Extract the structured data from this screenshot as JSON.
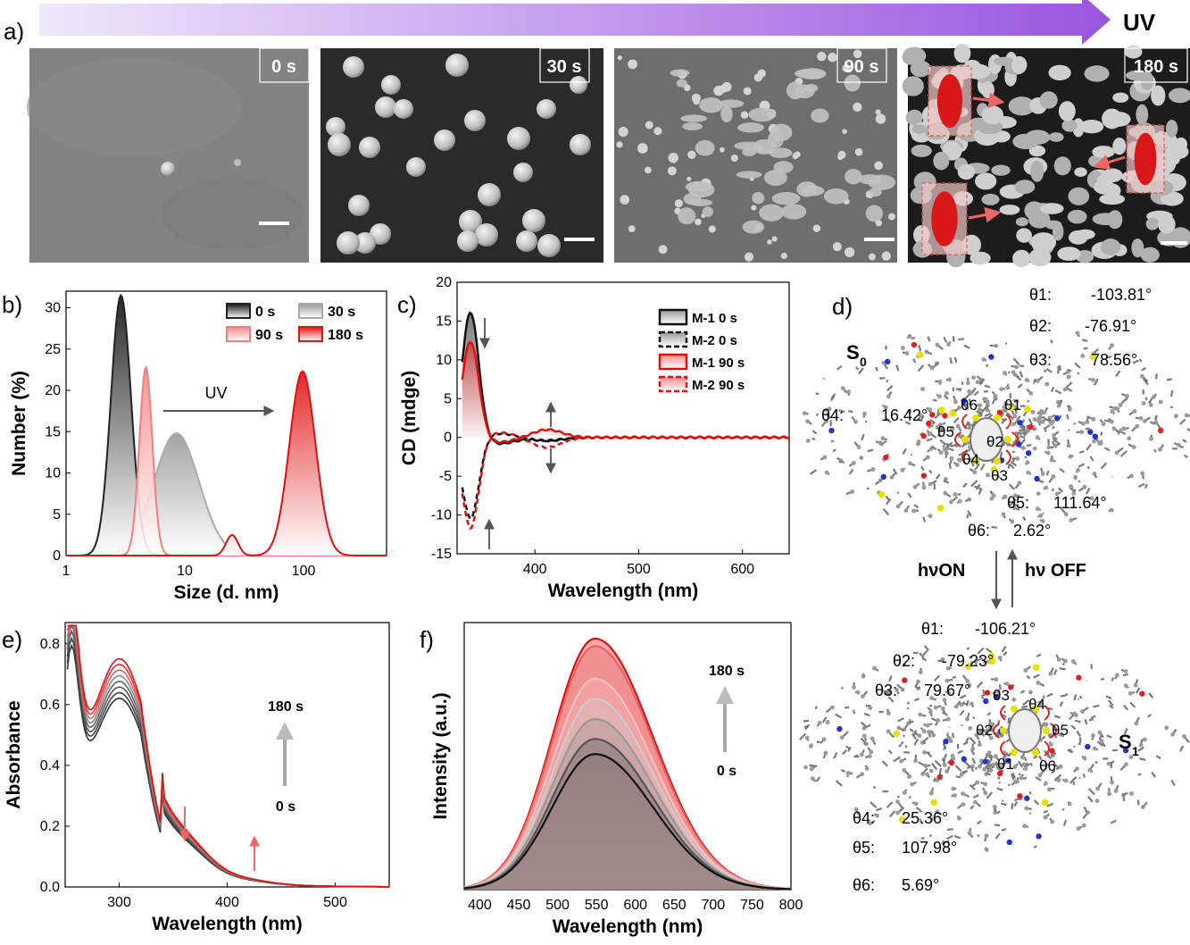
{
  "panel_labels": {
    "a": "a)",
    "b": "b)",
    "c": "c)",
    "d": "d)",
    "e": "e)",
    "f": "f)"
  },
  "uv_label": "UV",
  "sem": {
    "times": [
      "0 s",
      "30 s",
      "90 s",
      "180 s"
    ]
  },
  "molecules": {
    "s0_label": "S",
    "s0_sub": "0",
    "s1_label": "S",
    "s1_sub": "1",
    "s0_angles": [
      {
        "name": "θ1:",
        "value": "-103.81°"
      },
      {
        "name": "θ2:",
        "value": "-76.91°"
      },
      {
        "name": "θ3:",
        "value": "78.56°"
      },
      {
        "name": "θ4:",
        "value": "16.42°"
      },
      {
        "name": "θ5:",
        "value": "111.64°"
      },
      {
        "name": "θ6:",
        "value": "2.62°"
      }
    ],
    "s1_angles": [
      {
        "name": "θ1:",
        "value": "-106.21°"
      },
      {
        "name": "θ2:",
        "value": "-79.23°"
      },
      {
        "name": "θ3:",
        "value": "79.67°"
      },
      {
        "name": "θ4:",
        "value": "25.36°"
      },
      {
        "name": "θ5:",
        "value": "107.98°"
      },
      {
        "name": "θ6:",
        "value": "5.69°"
      }
    ],
    "ring_labels_s0": [
      "θ6",
      "θ1",
      "θ5",
      "θ2",
      "θ4",
      "θ3"
    ],
    "ring_labels_s1": [
      "θ3",
      "θ4",
      "θ5",
      "θ2",
      "θ1",
      "θ6"
    ],
    "hv_on": "hνON",
    "hv_off": "hν OFF"
  },
  "chart_data": [
    {
      "id": "b",
      "type": "area",
      "xlabel": "Size (d. nm)",
      "ylabel": "Number (%)",
      "xscale": "log",
      "xlim": [
        1,
        500
      ],
      "ylim": [
        0,
        32
      ],
      "xticks": [
        "1",
        "10",
        "100"
      ],
      "yticks": [
        "0",
        "5",
        "10",
        "15",
        "20",
        "25",
        "30"
      ],
      "annotation": "UV",
      "series": [
        {
          "name": "0 s",
          "color": "#222222",
          "peak": 2.9,
          "sigma": 0.085,
          "height": 31.5
        },
        {
          "name": "30 s",
          "color": "#aaaaaa",
          "peak": 8.5,
          "sigma": 0.19,
          "height": 14.8
        },
        {
          "name": "90 s",
          "color": "#f08080",
          "peak": 4.7,
          "sigma": 0.055,
          "height": 22.8
        },
        {
          "name": "180 s",
          "color": "#e01010",
          "peak": 98,
          "sigma": 0.11,
          "height": 22.3,
          "minor_peak": 25,
          "minor_height": 2.5
        }
      ]
    },
    {
      "id": "c",
      "type": "line",
      "xlabel": "Wavelength (nm)",
      "ylabel": "CD (mdge)",
      "xlim": [
        325,
        645
      ],
      "ylim": [
        -15,
        20
      ],
      "xticks": [
        "400",
        "500",
        "600"
      ],
      "yticks": [
        "-15",
        "-10",
        "-5",
        "0",
        "5",
        "10",
        "15",
        "20"
      ],
      "series": [
        {
          "name": "M-1  0 s",
          "color": "#111111",
          "style": "solid",
          "peak": 16.3
        },
        {
          "name": "M-2  0 s",
          "color": "#111111",
          "style": "dash",
          "peak": -10.5
        },
        {
          "name": "M-1 90 s",
          "color": "#e01010",
          "style": "solid",
          "peak": 12.5
        },
        {
          "name": "M-2 90 s",
          "color": "#e01010",
          "style": "dash",
          "peak": -11.8
        }
      ]
    },
    {
      "id": "e",
      "type": "line",
      "xlabel": "Wavelength (nm)",
      "ylabel": "Absorbance",
      "xlim": [
        250,
        550
      ],
      "ylim": [
        0,
        0.87
      ],
      "xticks": [
        "300",
        "400",
        "500"
      ],
      "yticks": [
        "0.0",
        "0.2",
        "0.4",
        "0.6",
        "0.8"
      ],
      "time_start": "0 s",
      "time_end": "180 s",
      "series": [
        {
          "name": "0 s",
          "color": "#222222"
        },
        {
          "name": "180 s",
          "color": "#e01010"
        }
      ]
    },
    {
      "id": "f",
      "type": "area",
      "xlabel": "Wavelength (nm)",
      "ylabel": "Intensity (a.u.)",
      "xlim": [
        380,
        800
      ],
      "ylim": [
        0,
        1
      ],
      "xticks": [
        "400",
        "450",
        "500",
        "550",
        "600",
        "650",
        "700",
        "750",
        "800"
      ],
      "time_start": "0 s",
      "time_end": "180 s",
      "series_peaks": [
        0.54,
        0.6,
        0.68,
        0.76,
        0.84,
        0.92,
        0.97,
        1.0
      ],
      "series_colors": [
        "#111111",
        "#555555",
        "#999999",
        "#cccccc",
        "#f5c0c0",
        "#f09090",
        "#ec6060",
        "#e01010"
      ]
    }
  ]
}
